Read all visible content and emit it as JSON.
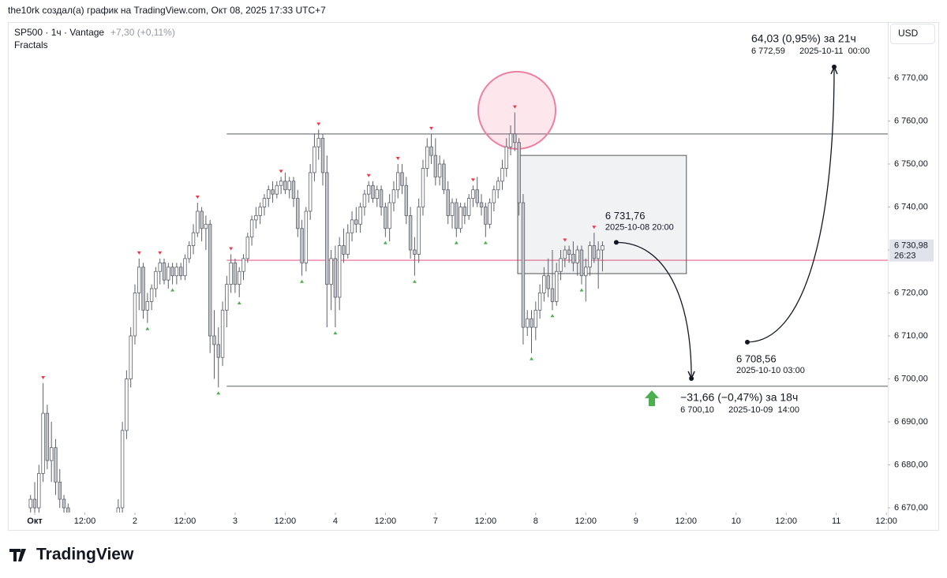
{
  "header": {
    "credit": "the10rk создал(а) график на TradingView.com, Окт 08, 2025 17:33 UTC+7",
    "symbol": "SP500 · 1ч · Vantage",
    "change": "+7,30 (+0,11%)",
    "indicator": "Fractals",
    "currency": "USD"
  },
  "footer": {
    "brand": "TradingView"
  },
  "chart_data": {
    "type": "candlestick",
    "xlim": [
      -6.43,
      204.35
    ],
    "xticks": [
      {
        "value": 0,
        "label": "Окт"
      },
      {
        "value": 12,
        "label": "12:00"
      },
      {
        "value": 24,
        "label": "2"
      },
      {
        "value": 36,
        "label": "12:00"
      },
      {
        "value": 48,
        "label": "3"
      },
      {
        "value": 60,
        "label": "12:00"
      },
      {
        "value": 72,
        "label": "4"
      },
      {
        "value": 84,
        "label": "12:00"
      },
      {
        "value": 96,
        "label": "7"
      },
      {
        "value": 108,
        "label": "12:00"
      },
      {
        "value": 120,
        "label": "8"
      },
      {
        "value": 132,
        "label": "12:00"
      },
      {
        "value": 144,
        "label": "9"
      },
      {
        "value": 156,
        "label": "12:00"
      },
      {
        "value": 168,
        "label": "10"
      },
      {
        "value": 180,
        "label": "12:00"
      },
      {
        "value": 192,
        "label": "11"
      },
      {
        "value": 204,
        "label": "12:00"
      }
    ],
    "ylim": [
      6668.9,
      6782.66
    ],
    "yticks": [
      {
        "value": 6670,
        "label": "6 670,00"
      },
      {
        "value": 6680,
        "label": "6 680,00"
      },
      {
        "value": 6690,
        "label": "6 690,00"
      },
      {
        "value": 6700,
        "label": "6 700,00"
      },
      {
        "value": 6710,
        "label": "6 710,00"
      },
      {
        "value": 6720,
        "label": "6 720,00"
      },
      {
        "value": 6730,
        "label": "6 730,00"
      },
      {
        "value": 6740,
        "label": "6 740,00"
      },
      {
        "value": 6750,
        "label": "6 750,00"
      },
      {
        "value": 6760,
        "label": "6 760,00"
      },
      {
        "value": 6770,
        "label": "6 770,00"
      }
    ],
    "up_color": "#ffffff",
    "down_color": "#c4c6cc",
    "border_color": "#5d606b",
    "x": [
      -1,
      0,
      1,
      2,
      3,
      4,
      5,
      6,
      7,
      8,
      20,
      21,
      22,
      23,
      24,
      25,
      26,
      27,
      28,
      29,
      30,
      31,
      32,
      33,
      34,
      35,
      36,
      37,
      38,
      39,
      40,
      41,
      42,
      43,
      44,
      45,
      46,
      47,
      48,
      49,
      50,
      51,
      52,
      53,
      54,
      55,
      56,
      57,
      58,
      59,
      60,
      61,
      62,
      63,
      64,
      65,
      66,
      67,
      68,
      69,
      70,
      71,
      72,
      73,
      74,
      75,
      76,
      77,
      78,
      79,
      80,
      81,
      82,
      83,
      84,
      85,
      86,
      87,
      88,
      89,
      90,
      91,
      92,
      93,
      94,
      95,
      96,
      97,
      98,
      99,
      100,
      101,
      102,
      103,
      104,
      105,
      106,
      107,
      108,
      109,
      110,
      111,
      112,
      113,
      114,
      115,
      116,
      117,
      118,
      119,
      120,
      121,
      122,
      123,
      124,
      125,
      126,
      127,
      128,
      129,
      130,
      131,
      132,
      133,
      134,
      135,
      136
    ],
    "open": [
      6670,
      6672,
      6670,
      6678,
      6692,
      6681,
      6684,
      6676,
      6672,
      6670,
      6662,
      6670,
      6688,
      6700,
      6710,
      6720,
      6726,
      6716,
      6718,
      6721,
      6725,
      6727,
      6723,
      6726,
      6724,
      6726,
      6724,
      6728,
      6731,
      6734,
      6739,
      6735,
      6736,
      6710,
      6708,
      6705,
      6716,
      6722,
      6727,
      6722,
      6725,
      6728,
      6733,
      6737,
      6738,
      6740,
      6742,
      6744,
      6743,
      6745,
      6746,
      6744,
      6746,
      6742,
      6735,
      6727,
      6739,
      6748,
      6754,
      6756,
      6748,
      6722,
      6728,
      6719,
      6731,
      6729,
      6734,
      6737,
      6736,
      6740,
      6743,
      6745,
      6742,
      6744,
      6740,
      6735,
      6741,
      6744,
      6748,
      6745,
      6738,
      6730,
      6729,
      6740,
      6749,
      6754,
      6752,
      6747,
      6750,
      6744,
      6738,
      6741,
      6735,
      6740,
      6738,
      6742,
      6744,
      6741,
      6740,
      6736,
      6741,
      6744,
      6746,
      6749,
      6754,
      6757,
      6755,
      6741,
      6712,
      6714,
      6712,
      6716,
      6720,
      6724,
      6721,
      6718,
      6725,
      6728,
      6730,
      6729,
      6727,
      6730,
      6724,
      6726,
      6731,
      6728,
      6730
    ],
    "high": [
      6673,
      6676,
      6680,
      6699,
      6694,
      6690,
      6686,
      6679,
      6673,
      6671,
      6672,
      6690,
      6702,
      6712,
      6722,
      6728,
      6727,
      6720,
      6722,
      6726,
      6728,
      6728,
      6727,
      6727,
      6727,
      6727,
      6729,
      6732,
      6736,
      6741,
      6740,
      6738,
      6737,
      6716,
      6712,
      6718,
      6724,
      6729,
      6728,
      6726,
      6729,
      6734,
      6738,
      6740,
      6741,
      6743,
      6745,
      6746,
      6746,
      6747,
      6748,
      6747,
      6747,
      6744,
      6737,
      6740,
      6750,
      6757,
      6758,
      6757,
      6752,
      6730,
      6731,
      6733,
      6735,
      6736,
      6739,
      6740,
      6741,
      6744,
      6746,
      6746,
      6745,
      6745,
      6741,
      6743,
      6746,
      6750,
      6750,
      6747,
      6740,
      6733,
      6742,
      6751,
      6756,
      6757,
      6756,
      6752,
      6751,
      6746,
      6742,
      6742,
      6741,
      6741,
      6743,
      6745,
      6747,
      6743,
      6741,
      6742,
      6745,
      6747,
      6751,
      6756,
      6759,
      6762,
      6756,
      6743,
      6716,
      6716,
      6718,
      6722,
      6726,
      6728,
      6730,
      6727,
      6730,
      6731,
      6731,
      6732,
      6731,
      6731,
      6728,
      6732,
      6734,
      6732,
      6732
    ],
    "low": [
      6664,
      6668,
      6668,
      6676,
      6679,
      6676,
      6673,
      6670,
      6668,
      6664,
      6660,
      6668,
      6686,
      6698,
      6708,
      6716,
      6714,
      6713,
      6716,
      6719,
      6722,
      6722,
      6721,
      6722,
      6722,
      6723,
      6723,
      6727,
      6729,
      6733,
      6732,
      6730,
      6706,
      6700,
      6698,
      6703,
      6712,
      6720,
      6720,
      6719,
      6723,
      6727,
      6731,
      6735,
      6736,
      6738,
      6740,
      6741,
      6742,
      6743,
      6743,
      6742,
      6740,
      6733,
      6724,
      6725,
      6737,
      6746,
      6751,
      6745,
      6712,
      6716,
      6712,
      6716,
      6727,
      6728,
      6732,
      6734,
      6734,
      6738,
      6741,
      6741,
      6740,
      6738,
      6733,
      6732,
      6739,
      6742,
      6743,
      6736,
      6728,
      6724,
      6727,
      6738,
      6747,
      6750,
      6745,
      6745,
      6743,
      6736,
      6735,
      6733,
      6734,
      6736,
      6737,
      6740,
      6740,
      6738,
      6733,
      6735,
      6739,
      6742,
      6744,
      6747,
      6752,
      6753,
      6738,
      6708,
      6710,
      6706,
      6709,
      6714,
      6718,
      6719,
      6716,
      6717,
      6723,
      6726,
      6727,
      6725,
      6724,
      6722,
      6718,
      6724,
      6727,
      6721,
      6725
    ],
    "close": [
      6672,
      6670,
      6678,
      6692,
      6681,
      6684,
      6676,
      6672,
      6670,
      6666,
      6670,
      6688,
      6700,
      6710,
      6720,
      6726,
      6716,
      6718,
      6721,
      6725,
      6727,
      6723,
      6726,
      6724,
      6726,
      6724,
      6728,
      6731,
      6734,
      6739,
      6735,
      6736,
      6710,
      6708,
      6705,
      6716,
      6722,
      6727,
      6722,
      6725,
      6728,
      6733,
      6737,
      6738,
      6740,
      6742,
      6744,
      6743,
      6745,
      6746,
      6744,
      6746,
      6742,
      6735,
      6727,
      6739,
      6748,
      6754,
      6756,
      6748,
      6722,
      6728,
      6719,
      6731,
      6729,
      6734,
      6737,
      6736,
      6740,
      6743,
      6745,
      6742,
      6744,
      6740,
      6735,
      6741,
      6744,
      6748,
      6745,
      6738,
      6730,
      6729,
      6740,
      6749,
      6754,
      6752,
      6747,
      6750,
      6744,
      6738,
      6741,
      6735,
      6740,
      6738,
      6742,
      6744,
      6741,
      6740,
      6736,
      6741,
      6744,
      6746,
      6749,
      6754,
      6757,
      6755,
      6741,
      6712,
      6714,
      6712,
      6716,
      6720,
      6724,
      6721,
      6718,
      6725,
      6728,
      6730,
      6729,
      6727,
      6730,
      6724,
      6726,
      6731,
      6728,
      6730,
      6730.98
    ],
    "fractal_highs": [
      2,
      25,
      30,
      39,
      47,
      59,
      68,
      80,
      87,
      95,
      105,
      115,
      127,
      134
    ],
    "fractal_high_color": "#f23645",
    "fractal_lows": [
      27,
      33,
      44,
      49,
      64,
      72,
      84,
      91,
      101,
      108,
      119,
      124,
      131
    ],
    "fractal_low_color": "#4caf50",
    "levels": [
      {
        "value": 6757,
        "x0": 46,
        "color": "#787b86"
      },
      {
        "value": 6698.3,
        "x0": 46,
        "color": "#787b86"
      },
      {
        "value": 6727.6,
        "x0": 46,
        "color": "#ef7ea0"
      }
    ],
    "box": {
      "x": [
        115.7,
        156.1
      ],
      "y": [
        6724.5,
        6752
      ]
    },
    "circle": {
      "x": 115.5,
      "y": 6762.5
    },
    "current_price": {
      "value": 6730.98,
      "label": "6 730,98"
    },
    "countdown": "26:23",
    "measures": [
      {
        "start": {
          "x": 139.3,
          "price": {
            "value": 6731.76,
            "label": "6 731,76"
          },
          "time": "2025-10-08 20:00"
        },
        "end": {
          "x": 157.3,
          "price": {
            "value": 6700.1,
            "label": "6 700,10"
          },
          "time": "2025-10-09  14:00"
        },
        "change": "−31,66 (−0,47%) за 18ч"
      },
      {
        "start": {
          "x": 170.7,
          "price": {
            "value": 6708.56,
            "label": "6 708,56"
          },
          "time": "2025-10-10 03:00"
        },
        "end": {
          "x": 191.5,
          "price": {
            "value": 6772.59,
            "label": "6 772,59"
          },
          "time": "2025-10-11  00:00"
        },
        "change": "64,03 (0,95%) за 21ч"
      }
    ]
  }
}
